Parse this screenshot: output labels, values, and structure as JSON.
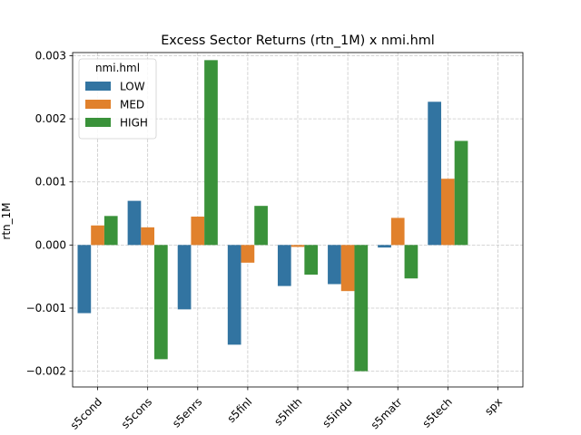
{
  "chart_data": {
    "type": "bar",
    "title": "Excess Sector Returns (rtn_1M) x nmi.hml",
    "xlabel": "",
    "ylabel": "rtn_1M",
    "categories": [
      "s5cond",
      "s5cons",
      "s5enrs",
      "s5finl",
      "s5hlth",
      "s5indu",
      "s5matr",
      "s5tech",
      "spx"
    ],
    "series": [
      {
        "name": "LOW",
        "color": "#3274a1",
        "values": [
          -0.00108,
          0.0007,
          -0.00102,
          -0.00158,
          -0.00065,
          -0.00062,
          -4e-05,
          0.00227,
          0
        ]
      },
      {
        "name": "MED",
        "color": "#e1812c",
        "values": [
          0.00031,
          0.00028,
          0.00045,
          -0.00028,
          -3e-05,
          -0.00073,
          0.00043,
          0.00105,
          0
        ]
      },
      {
        "name": "HIGH",
        "color": "#3a923a",
        "values": [
          0.00046,
          -0.00181,
          0.00293,
          0.00062,
          -0.00047,
          -0.002,
          -0.00053,
          0.00165,
          0
        ]
      }
    ],
    "ylim": [
      -0.00225,
      0.00305
    ],
    "yticks": [
      -0.002,
      -0.001,
      0.0,
      0.001,
      0.002,
      0.003
    ],
    "ytick_labels": [
      "−0.002",
      "−0.001",
      "0.000",
      "0.001",
      "0.002",
      "0.003"
    ],
    "grid": true,
    "legend": {
      "title": "nmi.hml",
      "placement": "top-left"
    }
  }
}
